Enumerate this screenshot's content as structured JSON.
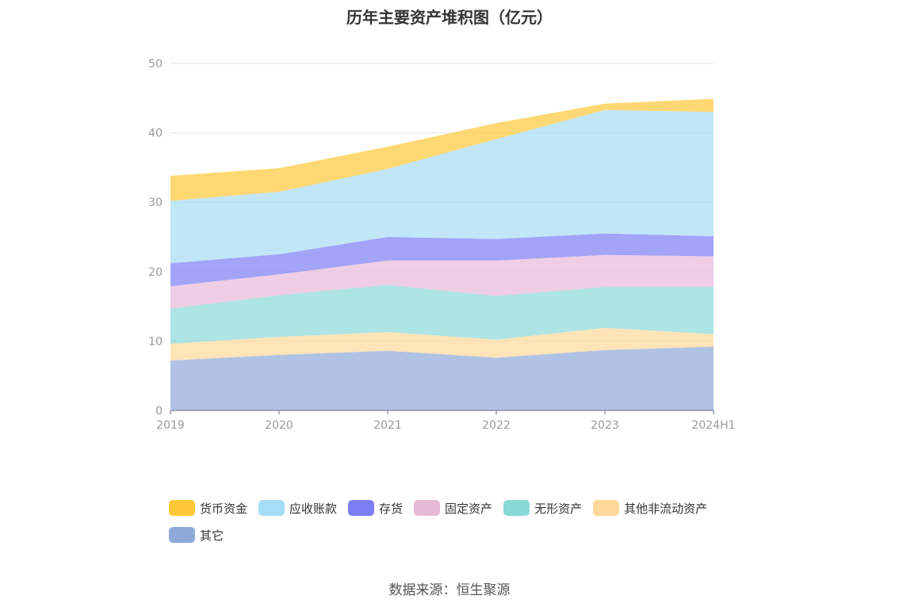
{
  "chart_data": {
    "type": "area",
    "stacked": true,
    "title": "历年主要资产堆积图（亿元）",
    "x": [
      "2019",
      "2020",
      "2021",
      "2022",
      "2023",
      "2024H1"
    ],
    "ylim": [
      0,
      50
    ],
    "yticks": [
      0,
      10,
      20,
      30,
      40,
      50
    ],
    "grid": true,
    "legend_position": "bottom",
    "series": [
      {
        "name": "其它",
        "color": "#8eaad8",
        "values": [
          7.2,
          8.0,
          8.6,
          7.6,
          8.7,
          9.2
        ]
      },
      {
        "name": "其他非流动资产",
        "color": "#ffd89a",
        "values": [
          2.4,
          2.6,
          2.7,
          2.6,
          3.2,
          1.8
        ]
      },
      {
        "name": "无形资产",
        "color": "#8ad8d8",
        "values": [
          5.1,
          6.0,
          6.8,
          6.3,
          5.9,
          6.8
        ]
      },
      {
        "name": "固定资产",
        "color": "#e8b8d8",
        "values": [
          3.2,
          3.0,
          3.5,
          5.1,
          4.6,
          4.4
        ]
      },
      {
        "name": "存货",
        "color": "#7c7ef5",
        "values": [
          3.3,
          2.9,
          3.4,
          3.1,
          3.1,
          2.9
        ]
      },
      {
        "name": "应收账款",
        "color": "#a6dcf5",
        "values": [
          9.0,
          9.0,
          9.8,
          14.4,
          17.8,
          17.9
        ]
      },
      {
        "name": "货币资金",
        "color": "#ffc838",
        "values": [
          3.6,
          3.4,
          3.2,
          2.3,
          0.9,
          1.9
        ]
      }
    ]
  },
  "legend_order": [
    "货币资金",
    "应收账款",
    "存货",
    "固定资产",
    "无形资产",
    "其他非流动资产",
    "其它"
  ],
  "source": "数据来源：恒生聚源"
}
